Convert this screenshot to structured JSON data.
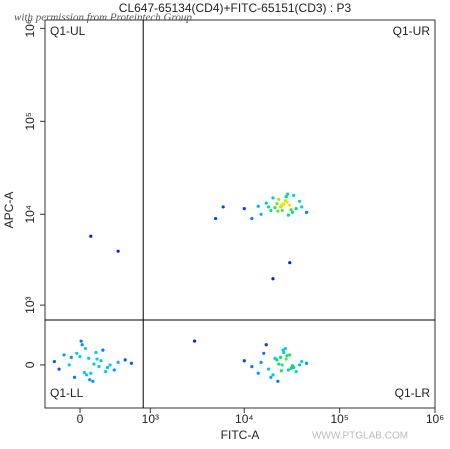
{
  "chart_data": {
    "type": "scatter",
    "title": "CL647-65134(CD4)+FITC-65151(CD3) : P3",
    "x_label": "FITC-A",
    "y_label": "APC-A",
    "scale": "biexponential",
    "xlim": [
      -360,
      1000000
    ],
    "ylim": [
      -615,
      1230000
    ],
    "xticks": [
      0,
      {
        "value": 1000,
        "label": "10³"
      },
      {
        "value": 10000,
        "label": "10⁴"
      },
      {
        "value": 100000,
        "label": "10⁵"
      },
      {
        "value": 1000000,
        "label": "10⁶"
      }
    ],
    "yticks": [
      0,
      {
        "value": 1000,
        "label": "10³"
      },
      {
        "value": 10000,
        "label": "10⁴"
      },
      {
        "value": 100000,
        "label": "10⁵"
      },
      {
        "value": 1000000,
        "label": "10⁶"
      }
    ],
    "gate": {
      "x": 830,
      "y": 650
    },
    "quadrant_labels": [
      "Q1-UL",
      "Q1-UR",
      "Q1-LL",
      "Q1-LR"
    ],
    "watermarks": [
      "with permission from Proteintech Group",
      "WWW.PTGLAB.COM"
    ],
    "x": [
      18000,
      22000,
      25000,
      30000,
      27000,
      15000,
      35000,
      20000,
      24000,
      28000,
      32000,
      12000,
      40000,
      19000,
      26000,
      23000,
      29000,
      17000,
      33000,
      21000,
      45000,
      14000,
      25500,
      31000,
      27500,
      22500,
      10000,
      38000,
      24500,
      28500,
      -100,
      0,
      100,
      200,
      50,
      -200,
      300,
      150,
      -50,
      80,
      250,
      400,
      -150,
      120,
      20,
      180,
      500,
      -250,
      60,
      220,
      -80,
      350,
      130,
      10,
      270,
      -30,
      90,
      160,
      600,
      40,
      18000,
      22000,
      25000,
      30000,
      20000,
      15000,
      35000,
      27000,
      24000,
      12000,
      40000,
      19000,
      26000,
      23000,
      29000,
      17000,
      33000,
      21000,
      45000,
      14000,
      25500,
      31000,
      28000,
      22500,
      10000,
      38000,
      24500,
      16000,
      27500,
      32000,
      5000,
      6000,
      3000,
      100,
      400,
      30000,
      20000
    ],
    "y": [
      12000,
      13000,
      11000,
      12500,
      14000,
      10000,
      11500,
      15000,
      12000,
      13500,
      10500,
      9000,
      12000,
      11000,
      12800,
      14500,
      9800,
      13200,
      16000,
      11800,
      10500,
      12200,
      13000,
      11200,
      15500,
      10800,
      11500,
      13800,
      12400,
      16500,
      0,
      100,
      -100,
      50,
      200,
      -50,
      0,
      150,
      -150,
      80,
      -80,
      30,
      120,
      -200,
      250,
      -20,
      60,
      40,
      -120,
      180,
      90,
      -60,
      10,
      300,
      -30,
      140,
      -180,
      70,
      20,
      -90,
      -50,
      60,
      0,
      120,
      -120,
      30,
      -80,
      200,
      90,
      -20,
      40,
      -150,
      150,
      10,
      -60,
      250,
      -30,
      80,
      20,
      -100,
      180,
      -40,
      110,
      -200,
      50,
      0,
      -70,
      140,
      70,
      -10,
      9000,
      12000,
      300,
      5800,
      4000,
      3000,
      2000
    ]
  }
}
